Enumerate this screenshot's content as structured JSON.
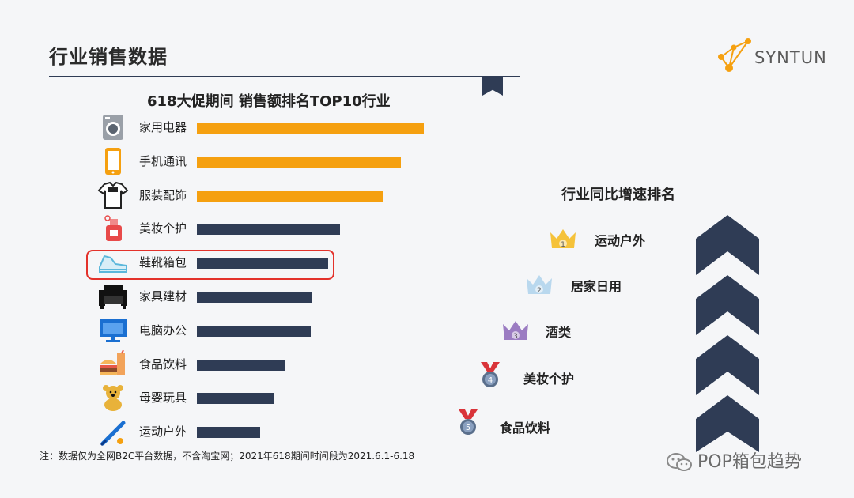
{
  "header": {
    "title": "行业销售数据",
    "logo_text": "SYNTUN"
  },
  "chart_data": {
    "type": "bar",
    "orientation": "horizontal",
    "title": "618大促期间  销售额排名TOP10行业",
    "categories": [
      "家用电器",
      "手机通讯",
      "服装配饰",
      "美妆个护",
      "鞋靴箱包",
      "家具建材",
      "电脑办公",
      "食品饮料",
      "母婴玩具",
      "运动户外"
    ],
    "values": [
      100,
      90,
      82,
      63,
      58,
      51,
      50,
      39,
      34,
      28
    ],
    "highlighted": "鞋靴箱包",
    "xlim": [
      0,
      100
    ],
    "grid": false,
    "icons": [
      "washing-machine-icon",
      "phone-icon",
      "tshirt-icon",
      "perfume-icon",
      "sneaker-icon",
      "sofa-icon",
      "monitor-icon",
      "burger-drink-icon",
      "teddy-bear-icon",
      "baseball-bat-icon"
    ],
    "colors": {
      "top3": "#f5a010",
      "rest": "#2f3c55"
    }
  },
  "growth_ranking": {
    "title": "行业同比增速排名",
    "items": [
      {
        "rank": "1",
        "label": "运动户外"
      },
      {
        "rank": "2",
        "label": "居家日用"
      },
      {
        "rank": "3",
        "label": "酒类"
      },
      {
        "rank": "4",
        "label": "美妆个护"
      },
      {
        "rank": "5",
        "label": "食品饮料"
      }
    ]
  },
  "footnote": "注：数据仅为全网B2C平台数据，不含淘宝网；2021年618期间时间段为2021.6.1-6.18",
  "watermark": "POP箱包趋势",
  "colors": {
    "accent_orange": "#f5a010",
    "navy": "#2f3c55",
    "highlight_red": "#e3322b"
  }
}
